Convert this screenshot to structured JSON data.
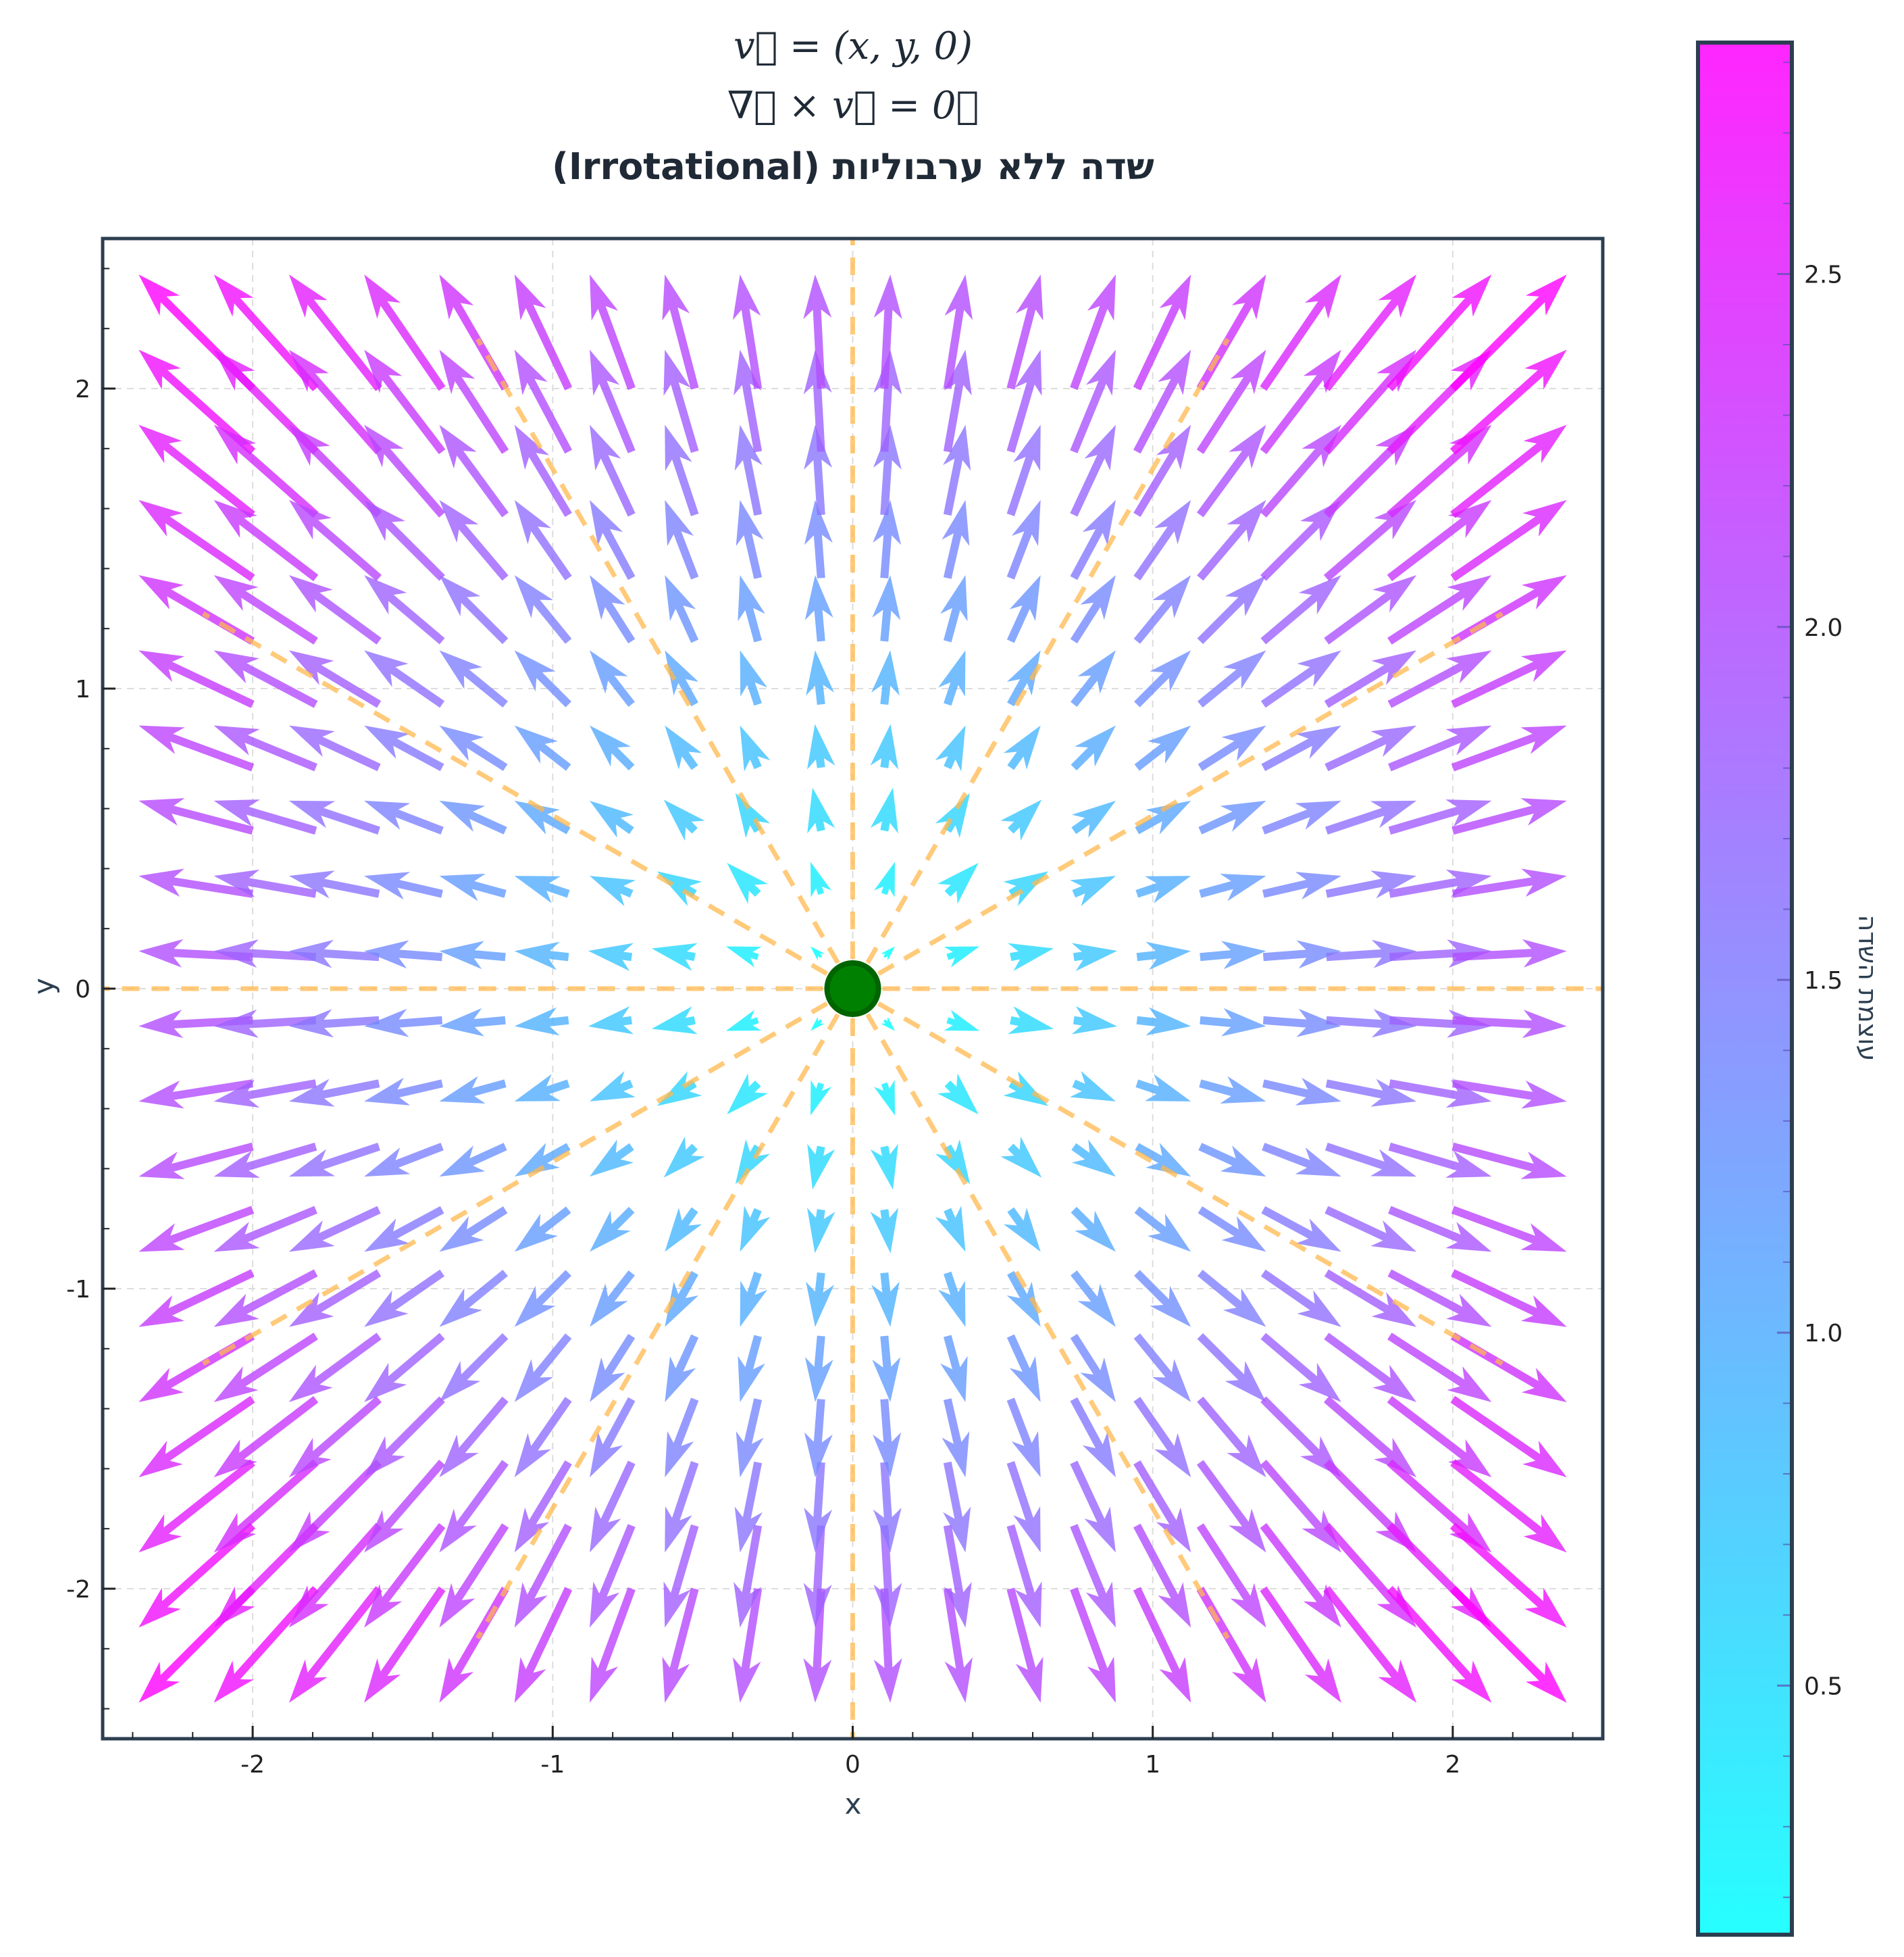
{
  "title_lines": [
    "v⃗ = (x, y, 0)",
    "∇⃗ × v⃗ = 0⃗",
    "שדה ללא ערבוליות (Irrotational)"
  ],
  "chart_data": {
    "type": "quiver",
    "title": "v⃗ = (x, y, 0) / ∇⃗ × v⃗ = 0⃗ / שדה ללא ערבוליות (Irrotational)",
    "xlabel": "x",
    "ylabel": "y",
    "xlim": [
      -2.5,
      2.5
    ],
    "ylim": [
      -2.5,
      2.5
    ],
    "xticks": [
      -2,
      -1,
      0,
      1,
      2
    ],
    "yticks": [
      -2,
      -1,
      0,
      1,
      2
    ],
    "xtick_labels": [
      "-2",
      "-1",
      "0",
      "1",
      "2"
    ],
    "ytick_labels": [
      "-2",
      "-1",
      "0",
      "1",
      "2"
    ],
    "grid": true,
    "field": {
      "u": "x",
      "v": "y",
      "grid_min": -2,
      "grid_max": 2,
      "grid_n": 20,
      "arrow_scale_units_per_magnitude": 0.19,
      "alpha": 0.8
    },
    "radial_lines": {
      "angles_deg": [
        0,
        30,
        60,
        90,
        120,
        150,
        180,
        210,
        240,
        270,
        300,
        330
      ],
      "length": 2.5,
      "color": "#FFB84D",
      "style": "dashed"
    },
    "source_point": {
      "x": 0,
      "y": 0,
      "color": "#008000",
      "edge_color": "#006400"
    },
    "colorbar": {
      "label": "עוצמת השדה",
      "colormap": "cool",
      "range": [
        0.147,
        2.828
      ],
      "ticks": [
        0.5,
        1.0,
        1.5,
        2.0,
        2.5
      ],
      "tick_labels": [
        "0.5",
        "1.0",
        "1.5",
        "2.0",
        "2.5"
      ]
    },
    "colors": {
      "axis": "#2c3e50",
      "text": "#222222",
      "grid": "#dddddd"
    }
  }
}
